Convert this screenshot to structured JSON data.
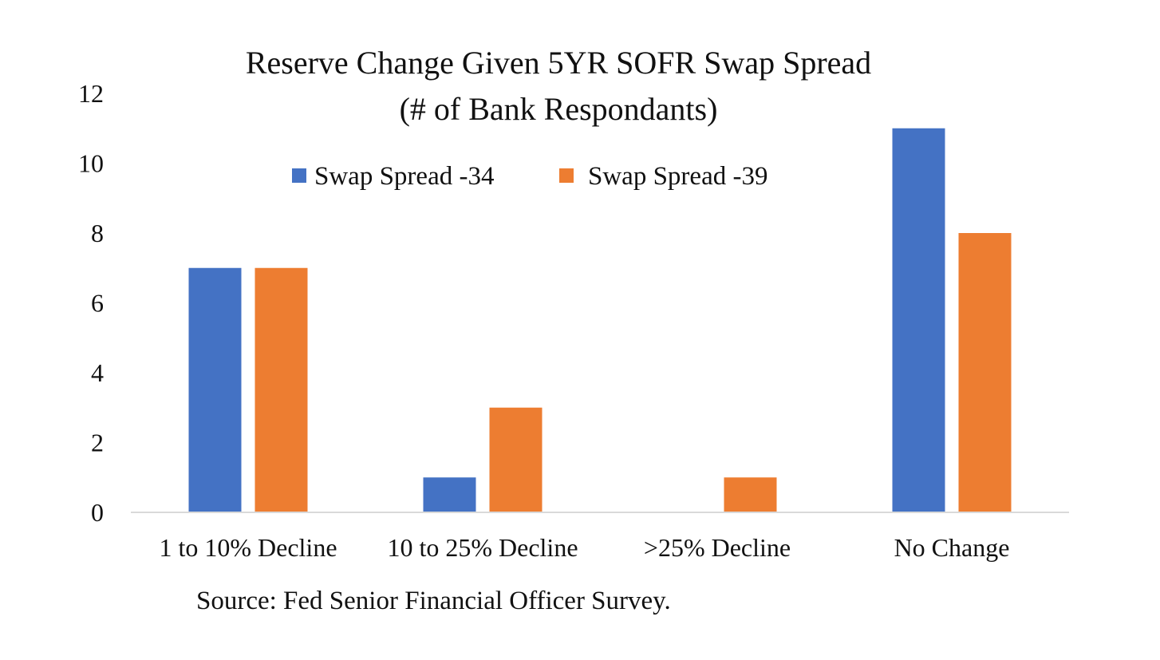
{
  "chart_data": {
    "type": "bar",
    "title": "Reserve Change Given 5YR SOFR Swap Spread",
    "subtitle": "(# of Bank Respondants)",
    "categories": [
      "1 to 10% Decline",
      "10 to 25% Decline",
      ">25% Decline",
      "No Change"
    ],
    "series": [
      {
        "name": "Swap Spread -34",
        "color": "#4472C4",
        "values": [
          7,
          1,
          0,
          11
        ]
      },
      {
        "name": "Swap Spread -39",
        "color": "#ED7D31",
        "values": [
          7,
          3,
          1,
          8
        ]
      }
    ],
    "ylim": [
      0,
      12
    ],
    "yticks": [
      "0",
      "2",
      "4",
      "6",
      "8",
      "10",
      "12"
    ],
    "grid": false,
    "legend_position": "top-center",
    "axis_color": "#d9d9d9"
  },
  "source": "Source: Fed Senior Financial Officer Survey."
}
